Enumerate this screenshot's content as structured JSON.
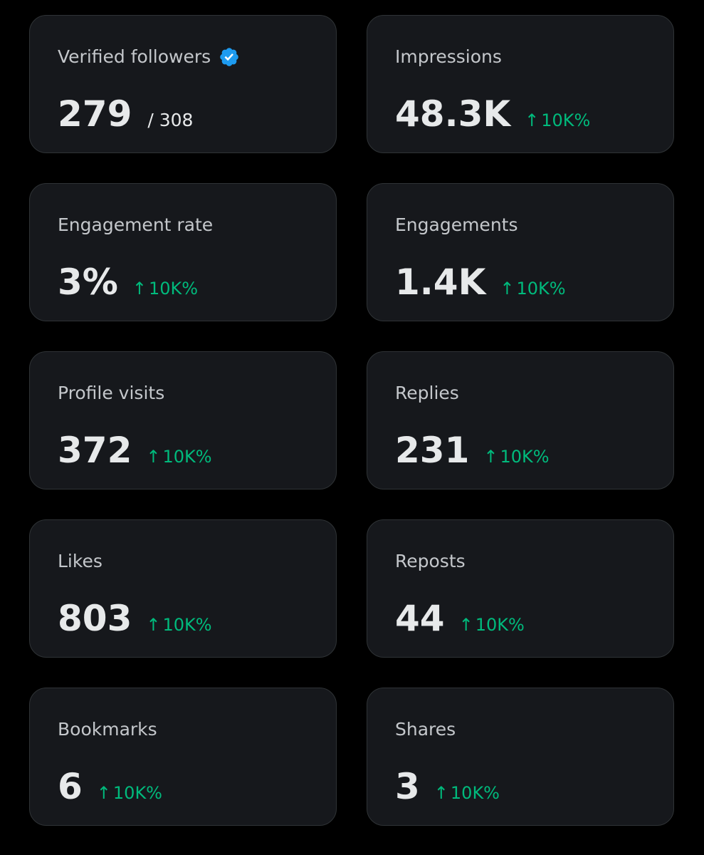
{
  "cards": [
    {
      "label": "Verified followers",
      "value": "279",
      "total": "/ 308",
      "verified_icon": "verified-badge-icon",
      "badge_color": "#1d9bf0"
    },
    {
      "label": "Impressions",
      "value": "48.3K",
      "arrow": "↑",
      "change": "10K%"
    },
    {
      "label": "Engagement rate",
      "value": "3%",
      "arrow": "↑",
      "change": "10K%"
    },
    {
      "label": "Engagements",
      "value": "1.4K",
      "arrow": "↑",
      "change": "10K%"
    },
    {
      "label": "Profile visits",
      "value": "372",
      "arrow": "↑",
      "change": "10K%"
    },
    {
      "label": "Replies",
      "value": "231",
      "arrow": "↑",
      "change": "10K%"
    },
    {
      "label": "Likes",
      "value": "803",
      "arrow": "↑",
      "change": "10K%"
    },
    {
      "label": "Reposts",
      "value": "44",
      "arrow": "↑",
      "change": "10K%"
    },
    {
      "label": "Bookmarks",
      "value": "6",
      "arrow": "↑",
      "change": "10K%"
    },
    {
      "label": "Shares",
      "value": "3",
      "arrow": "↑",
      "change": "10K%"
    }
  ],
  "colors": {
    "background": "#000000",
    "card": "#16181c",
    "card_border": "#2f3336",
    "label_text": "#c4c7cb",
    "value_text": "#e7e9ea",
    "positive_change": "#00ba7c"
  }
}
